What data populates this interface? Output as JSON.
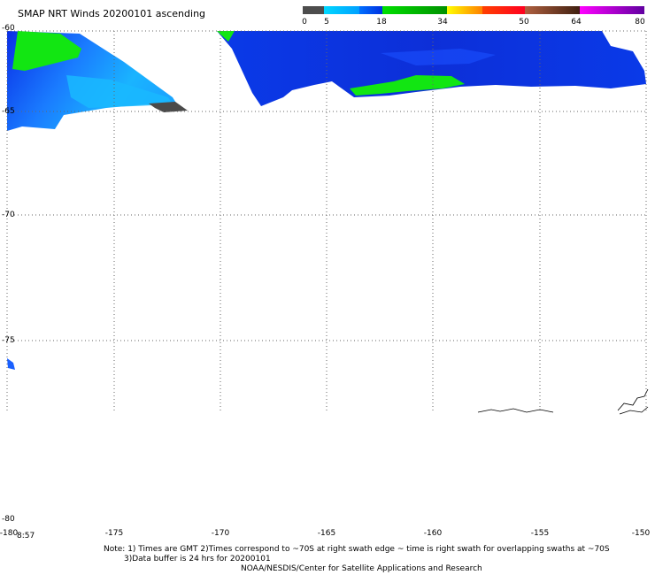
{
  "title": "SMAP NRT Winds 20200101 ascending",
  "colorbar": {
    "labels": [
      "0",
      "5",
      "18",
      "34",
      "50",
      "64",
      "80"
    ],
    "colors": {
      "calm": "#4d4d4d",
      "light": "#00bfff",
      "moderate": "#0040ff",
      "strong": "#00e000",
      "gale": "#ffd700",
      "storm": "#ff2020",
      "hurricane": "#7b3f1f",
      "extreme": "#a000c0"
    }
  },
  "map": {
    "lat_labels": [
      "-60",
      "-65",
      "-70",
      "-75",
      "-80"
    ],
    "lon_labels": [
      "-180",
      "-175",
      "-170",
      "-165",
      "-160",
      "-155",
      "-150"
    ],
    "swath_time": "8:57",
    "colors": {
      "wind_low": "#0a2ee6",
      "wind_light": "#1aa6ff",
      "wind_strong": "#12e612",
      "wind_calm": "#4a4a4a",
      "grid": "#666666"
    }
  },
  "notes": {
    "line1": "Note: 1) Times are GMT 2)Times correspond to ~70S at right swath edge ~ time is right swath for overlapping swaths at ~70S",
    "line2": "3)Data buffer is 24 hrs for 20200101",
    "line3": "NOAA/NESDIS/Center for Satellite Applications and Research"
  }
}
